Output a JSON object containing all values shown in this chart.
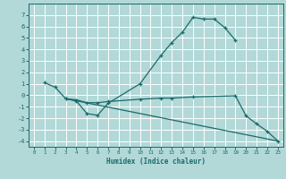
{
  "xlabel": "Humidex (Indice chaleur)",
  "background_color": "#b2d8d8",
  "grid_color": "#ffffff",
  "line_color": "#1a6b6b",
  "curve1_x": [
    1,
    2,
    3,
    4,
    5,
    6,
    7,
    10,
    12,
    13,
    14,
    15,
    16,
    17,
    18,
    19
  ],
  "curve1_y": [
    1.1,
    0.7,
    -0.3,
    -0.5,
    -1.6,
    -1.75,
    -0.7,
    1.0,
    3.5,
    4.6,
    5.5,
    6.8,
    6.65,
    6.65,
    5.9,
    4.8
  ],
  "curve2_x": [
    3,
    4,
    5,
    6,
    7,
    10,
    12,
    13,
    15,
    19,
    20,
    21,
    22,
    23
  ],
  "curve2_y": [
    -0.3,
    -0.4,
    -0.65,
    -0.65,
    -0.55,
    -0.35,
    -0.25,
    -0.25,
    -0.15,
    -0.05,
    -1.8,
    -2.5,
    -3.15,
    -4.0
  ],
  "curve3_x": [
    3,
    23
  ],
  "curve3_y": [
    -0.3,
    -4.0
  ],
  "xlim": [
    -0.5,
    23.5
  ],
  "ylim": [
    -4.5,
    8.0
  ],
  "xticks": [
    0,
    1,
    2,
    3,
    4,
    5,
    6,
    7,
    8,
    9,
    10,
    11,
    12,
    13,
    14,
    15,
    16,
    17,
    18,
    19,
    20,
    21,
    22,
    23
  ],
  "yticks": [
    -4,
    -3,
    -2,
    -1,
    0,
    1,
    2,
    3,
    4,
    5,
    6,
    7
  ]
}
